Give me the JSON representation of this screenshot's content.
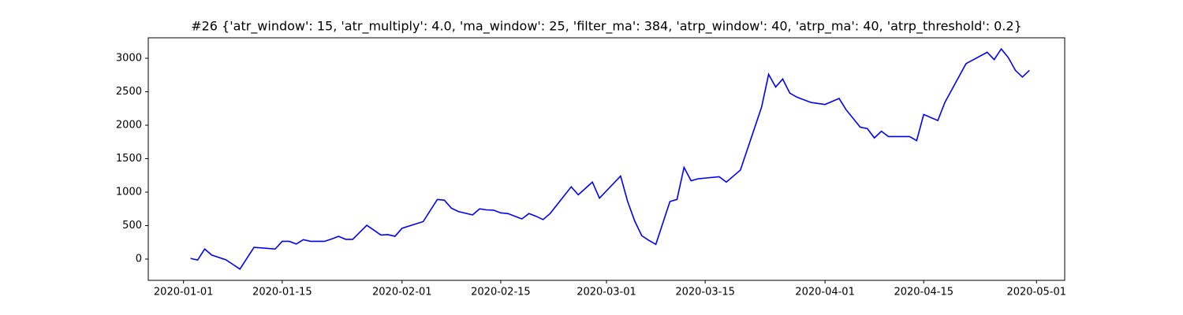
{
  "chart_data": {
    "type": "line",
    "title": "#26 {'atr_window': 15, 'atr_multiply': 4.0, 'ma_window': 25, 'filter_ma': 384, 'atrp_window': 40, 'atrp_ma': 40, 'atrp_threshold': 0.2}",
    "x": [
      "2020-01-02",
      "2020-01-03",
      "2020-01-04",
      "2020-01-05",
      "2020-01-07",
      "2020-01-08",
      "2020-01-09",
      "2020-01-11",
      "2020-01-14",
      "2020-01-15",
      "2020-01-16",
      "2020-01-17",
      "2020-01-18",
      "2020-01-19",
      "2020-01-21",
      "2020-01-22",
      "2020-01-23",
      "2020-01-24",
      "2020-01-25",
      "2020-01-27",
      "2020-01-29",
      "2020-01-30",
      "2020-01-31",
      "2020-02-01",
      "2020-02-04",
      "2020-02-06",
      "2020-02-07",
      "2020-02-08",
      "2020-02-09",
      "2020-02-11",
      "2020-02-12",
      "2020-02-13",
      "2020-02-14",
      "2020-02-15",
      "2020-02-16",
      "2020-02-18",
      "2020-02-19",
      "2020-02-20",
      "2020-02-21",
      "2020-02-22",
      "2020-02-25",
      "2020-02-26",
      "2020-02-28",
      "2020-02-29",
      "2020-03-03",
      "2020-03-04",
      "2020-03-05",
      "2020-03-06",
      "2020-03-07",
      "2020-03-08",
      "2020-03-10",
      "2020-03-11",
      "2020-03-12",
      "2020-03-13",
      "2020-03-14",
      "2020-03-17",
      "2020-03-18",
      "2020-03-20",
      "2020-03-23",
      "2020-03-24",
      "2020-03-25",
      "2020-03-26",
      "2020-03-27",
      "2020-03-28",
      "2020-03-30",
      "2020-04-01",
      "2020-04-03",
      "2020-04-04",
      "2020-04-06",
      "2020-04-07",
      "2020-04-08",
      "2020-04-09",
      "2020-04-10",
      "2020-04-13",
      "2020-04-14",
      "2020-04-15",
      "2020-04-17",
      "2020-04-18",
      "2020-04-21",
      "2020-04-24",
      "2020-04-25",
      "2020-04-26",
      "2020-04-27",
      "2020-04-28",
      "2020-04-29",
      "2020-04-30"
    ],
    "series": [
      {
        "color": "#0000ff",
        "values": [
          10,
          -15,
          150,
          60,
          -10,
          -80,
          -150,
          175,
          150,
          265,
          265,
          225,
          290,
          265,
          265,
          300,
          340,
          295,
          295,
          505,
          360,
          365,
          340,
          460,
          560,
          890,
          880,
          760,
          710,
          660,
          750,
          735,
          730,
          690,
          680,
          600,
          680,
          640,
          590,
          680,
          1080,
          960,
          1150,
          910,
          1240,
          860,
          570,
          350,
          280,
          220,
          860,
          890,
          1370,
          1170,
          1200,
          1230,
          1150,
          1330,
          2270,
          2760,
          2570,
          2690,
          2480,
          2420,
          2340,
          2310,
          2400,
          2230,
          1970,
          1950,
          1810,
          1910,
          1830,
          1830,
          1770,
          2160,
          2070,
          2340,
          2920,
          3090,
          2980,
          3140,
          3010,
          2820,
          2720,
          2820
        ]
      }
    ],
    "xlim": [
      "2019-12-27",
      "2020-05-05"
    ],
    "xticks": [
      "2020-01-01",
      "2020-01-15",
      "2020-02-01",
      "2020-02-15",
      "2020-03-01",
      "2020-03-15",
      "2020-04-01",
      "2020-04-15",
      "2020-05-01"
    ],
    "ylim": [
      -318,
      3306
    ],
    "yticks": [
      0,
      500,
      1000,
      1500,
      2000,
      2500,
      3000
    ]
  }
}
